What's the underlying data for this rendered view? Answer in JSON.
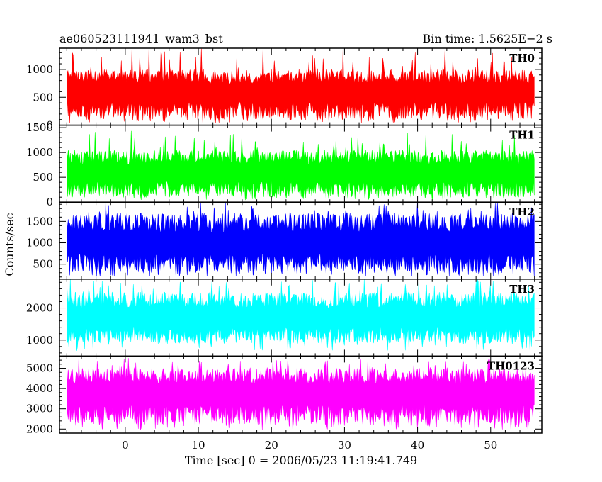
{
  "header": {
    "left_title": "ae060523111941_wam3_bst",
    "right_title": "Bin time: 1.5625E−2 s"
  },
  "chart_data": {
    "type": "line",
    "title": "ae060523111941_wam3_bst",
    "subtitle": "Bin time: 1.5625E−2 s",
    "xlabel": "Time [sec] 0 = 2006/05/23 11:19:41.749",
    "ylabel": "Counts/sec",
    "xlim": [
      -9,
      57
    ],
    "data_xrange": [
      -8,
      56
    ],
    "bin_time_s": 0.015625,
    "xticks": [
      0,
      10,
      20,
      30,
      40,
      50
    ],
    "xtick_labels": [
      "0",
      "10",
      "20",
      "30",
      "40",
      "50"
    ],
    "grid": false,
    "legend": "none (panel labels top-right)",
    "panels": [
      {
        "name": "TH0",
        "color": "#ff0000",
        "ylim": [
          0,
          1380
        ],
        "yticks": [
          0,
          500,
          1000
        ],
        "ytick_labels": [
          "0",
          "500",
          "1000"
        ],
        "mean": 600,
        "typical_min": 100,
        "typical_max": 1000,
        "peak": 1380
      },
      {
        "name": "TH1",
        "color": "#00ff00",
        "ylim": [
          0,
          1550
        ],
        "yticks": [
          0,
          500,
          1000,
          1500
        ],
        "ytick_labels": [
          "0",
          "500",
          "1000",
          "1500"
        ],
        "mean": 600,
        "typical_min": 100,
        "typical_max": 1050,
        "peak": 1450
      },
      {
        "name": "TH2",
        "color": "#0000ff",
        "ylim": [
          150,
          1950
        ],
        "yticks": [
          500,
          1000,
          1500
        ],
        "ytick_labels": [
          "500",
          "1000",
          "1500"
        ],
        "mean": 1000,
        "typical_min": 300,
        "typical_max": 1700,
        "peak": 1950
      },
      {
        "name": "TH3",
        "color": "#00ffff",
        "ylim": [
          500,
          2900
        ],
        "yticks": [
          1000,
          2000
        ],
        "ytick_labels": [
          "1000",
          "2000"
        ],
        "mean": 1700,
        "typical_min": 900,
        "typical_max": 2500,
        "peak": 2900
      },
      {
        "name": "TH0123",
        "color": "#ff00ff",
        "ylim": [
          1800,
          5600
        ],
        "yticks": [
          2000,
          3000,
          4000,
          5000
        ],
        "ytick_labels": [
          "2000",
          "3000",
          "4000",
          "5000"
        ],
        "mean": 3800,
        "typical_min": 2200,
        "typical_max": 5000,
        "peak": 5500
      }
    ]
  }
}
